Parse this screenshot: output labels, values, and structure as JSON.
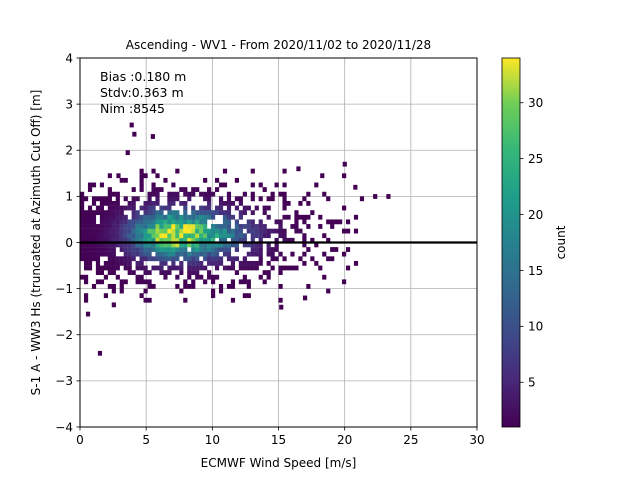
{
  "chart_data": {
    "type": "heatmap",
    "title": "Ascending - WV1 - From 2020/11/02 to 2020/11/28",
    "xlabel": "ECMWF Wind Speed [m/s]",
    "ylabel": "S-1 A - WW3 Hs (truncated at Azimuth Cut Off) [m]",
    "xlim": [
      0,
      30
    ],
    "ylim": [
      -4,
      4
    ],
    "xticks": [
      0,
      5,
      10,
      15,
      20,
      25,
      30
    ],
    "yticks": [
      -4,
      -3,
      -2,
      -1,
      0,
      1,
      2,
      3,
      4
    ],
    "grid": true,
    "reference_line_y": 0,
    "annotations": [
      "Bias :0.180 m",
      "Stdv:0.363 m",
      "Nim :8545"
    ],
    "colorbar": {
      "label": "count",
      "range": [
        1,
        34
      ],
      "ticks": [
        5,
        10,
        15,
        20,
        25,
        30
      ],
      "colormap": "viridis"
    },
    "density": {
      "bin_width_x": 0.3,
      "bin_height_y": 0.1,
      "peak_count": 34,
      "core": [
        {
          "x": 7.0,
          "y": 0.2,
          "count": 34
        },
        {
          "x": 6.2,
          "y": 0.15,
          "count": 26
        },
        {
          "x": 8.2,
          "y": 0.1,
          "count": 24
        },
        {
          "x": 5.5,
          "y": 0.05,
          "count": 20
        },
        {
          "x": 9.0,
          "y": 0.2,
          "count": 16
        },
        {
          "x": 4.5,
          "y": 0.1,
          "count": 12
        },
        {
          "x": 10.5,
          "y": 0.3,
          "count": 8
        },
        {
          "x": 3.0,
          "y": 0.0,
          "count": 5
        },
        {
          "x": 13.0,
          "y": 0.5,
          "count": 3
        },
        {
          "x": 16.0,
          "y": 0.6,
          "count": 2
        }
      ],
      "outliers": [
        {
          "x": 3.9,
          "y": 2.55,
          "count": 1
        },
        {
          "x": 4.1,
          "y": 2.35,
          "count": 1
        },
        {
          "x": 5.5,
          "y": 2.3,
          "count": 1
        },
        {
          "x": 3.6,
          "y": 1.95,
          "count": 1
        },
        {
          "x": 2.9,
          "y": 1.45,
          "count": 1
        },
        {
          "x": 1.5,
          "y": -2.4,
          "count": 1
        },
        {
          "x": 0.6,
          "y": -1.55,
          "count": 1
        },
        {
          "x": 15.2,
          "y": -1.4,
          "count": 1
        },
        {
          "x": 17.0,
          "y": -1.2,
          "count": 1
        },
        {
          "x": 20.0,
          "y": 1.7,
          "count": 1
        },
        {
          "x": 20.8,
          "y": 1.2,
          "count": 1
        },
        {
          "x": 22.3,
          "y": 1.0,
          "count": 1
        },
        {
          "x": 23.3,
          "y": 1.0,
          "count": 1
        },
        {
          "x": 21.3,
          "y": 0.95,
          "count": 1
        },
        {
          "x": 18.3,
          "y": 1.45,
          "count": 1
        },
        {
          "x": 16.5,
          "y": 1.6,
          "count": 1
        }
      ]
    }
  }
}
